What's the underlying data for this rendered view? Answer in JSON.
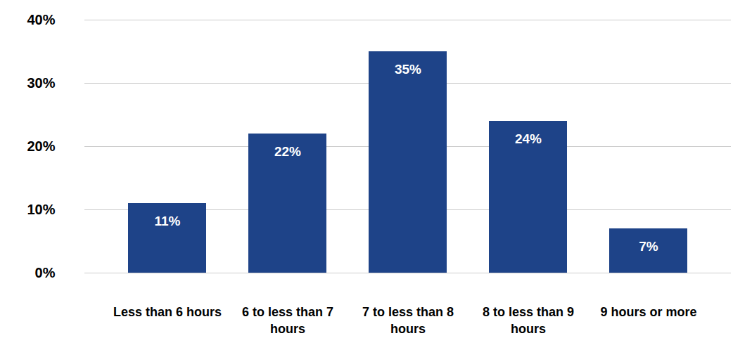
{
  "chart_data": {
    "type": "bar",
    "categories": [
      "Less than 6 hours",
      "6 to less than 7 hours",
      "7 to less than 8 hours",
      "8 to less than 9 hours",
      "9 hours or more"
    ],
    "values": [
      11,
      22,
      35,
      24,
      7
    ],
    "value_labels": [
      "11%",
      "22%",
      "35%",
      "24%",
      "7%"
    ],
    "color": "#1e4388",
    "ylim": [
      0,
      40
    ],
    "yticks": [
      {
        "value": 0,
        "label": "0%"
      },
      {
        "value": 10,
        "label": "10%"
      },
      {
        "value": 20,
        "label": "20%"
      },
      {
        "value": 30,
        "label": "30%"
      },
      {
        "value": 40,
        "label": "40%"
      }
    ],
    "grid": true,
    "data_labels": true
  }
}
